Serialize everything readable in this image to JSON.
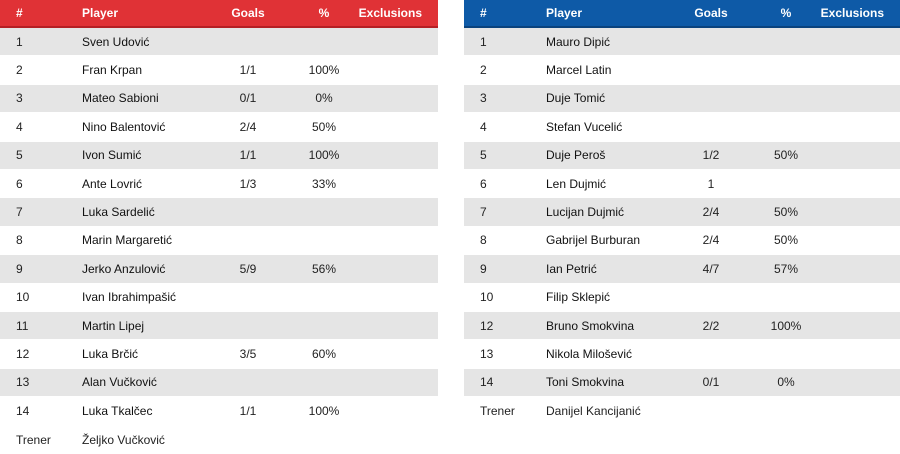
{
  "headers": {
    "num": "#",
    "player": "Player",
    "goals": "Goals",
    "pct": "%",
    "exclusions": "Exclusions"
  },
  "teams": [
    {
      "accent": "#e03236",
      "players": [
        {
          "num": "1",
          "name": "Sven Udović",
          "goals": "",
          "pct": ""
        },
        {
          "num": "2",
          "name": "Fran Krpan",
          "goals": "1/1",
          "pct": "100%"
        },
        {
          "num": "3",
          "name": "Mateo Sabioni",
          "goals": "0/1",
          "pct": "0%"
        },
        {
          "num": "4",
          "name": "Nino Balentović",
          "goals": "2/4",
          "pct": "50%"
        },
        {
          "num": "5",
          "name": "Ivon Sumić",
          "goals": "1/1",
          "pct": "100%"
        },
        {
          "num": "6",
          "name": "Ante Lovrić",
          "goals": "1/3",
          "pct": "33%"
        },
        {
          "num": "7",
          "name": "Luka Sardelić",
          "goals": "",
          "pct": ""
        },
        {
          "num": "8",
          "name": "Marin Margaretić",
          "goals": "",
          "pct": ""
        },
        {
          "num": "9",
          "name": "Jerko Anzulović",
          "goals": "5/9",
          "pct": "56%"
        },
        {
          "num": "10",
          "name": "Ivan Ibrahimpašić",
          "goals": "",
          "pct": ""
        },
        {
          "num": "11",
          "name": "Martin Lipej",
          "goals": "",
          "pct": ""
        },
        {
          "num": "12",
          "name": "Luka Brčić",
          "goals": "3/5",
          "pct": "60%"
        },
        {
          "num": "13",
          "name": "Alan Vučković",
          "goals": "",
          "pct": ""
        },
        {
          "num": "14",
          "name": "Luka Tkalčec",
          "goals": "1/1",
          "pct": "100%"
        }
      ],
      "coach_label": "Trener",
      "coach_name": "Željko Vučković"
    },
    {
      "accent": "#0e5aa7",
      "players": [
        {
          "num": "1",
          "name": "Mauro Dipić",
          "goals": "",
          "pct": ""
        },
        {
          "num": "2",
          "name": "Marcel Latin",
          "goals": "",
          "pct": ""
        },
        {
          "num": "3",
          "name": "Duje Tomić",
          "goals": "",
          "pct": ""
        },
        {
          "num": "4",
          "name": "Stefan Vucelić",
          "goals": "",
          "pct": ""
        },
        {
          "num": "5",
          "name": "Duje Peroš",
          "goals": "1/2",
          "pct": "50%"
        },
        {
          "num": "6",
          "name": "Len Dujmić",
          "goals": "1",
          "pct": ""
        },
        {
          "num": "7",
          "name": "Lucijan Dujmić",
          "goals": "2/4",
          "pct": "50%"
        },
        {
          "num": "8",
          "name": "Gabrijel Burburan",
          "goals": "2/4",
          "pct": "50%"
        },
        {
          "num": "9",
          "name": "Ian Petrić",
          "goals": "4/7",
          "pct": "57%"
        },
        {
          "num": "10",
          "name": "Filip Sklepić",
          "goals": "",
          "pct": ""
        },
        {
          "num": "12",
          "name": "Bruno Smokvina",
          "goals": "2/2",
          "pct": "100%"
        },
        {
          "num": "13",
          "name": "Nikola Milošević",
          "goals": "",
          "pct": ""
        },
        {
          "num": "14",
          "name": "Toni Smokvina",
          "goals": "0/1",
          "pct": "0%"
        }
      ],
      "coach_label": "Trener",
      "coach_name": "Danijel Kancijanić"
    }
  ]
}
